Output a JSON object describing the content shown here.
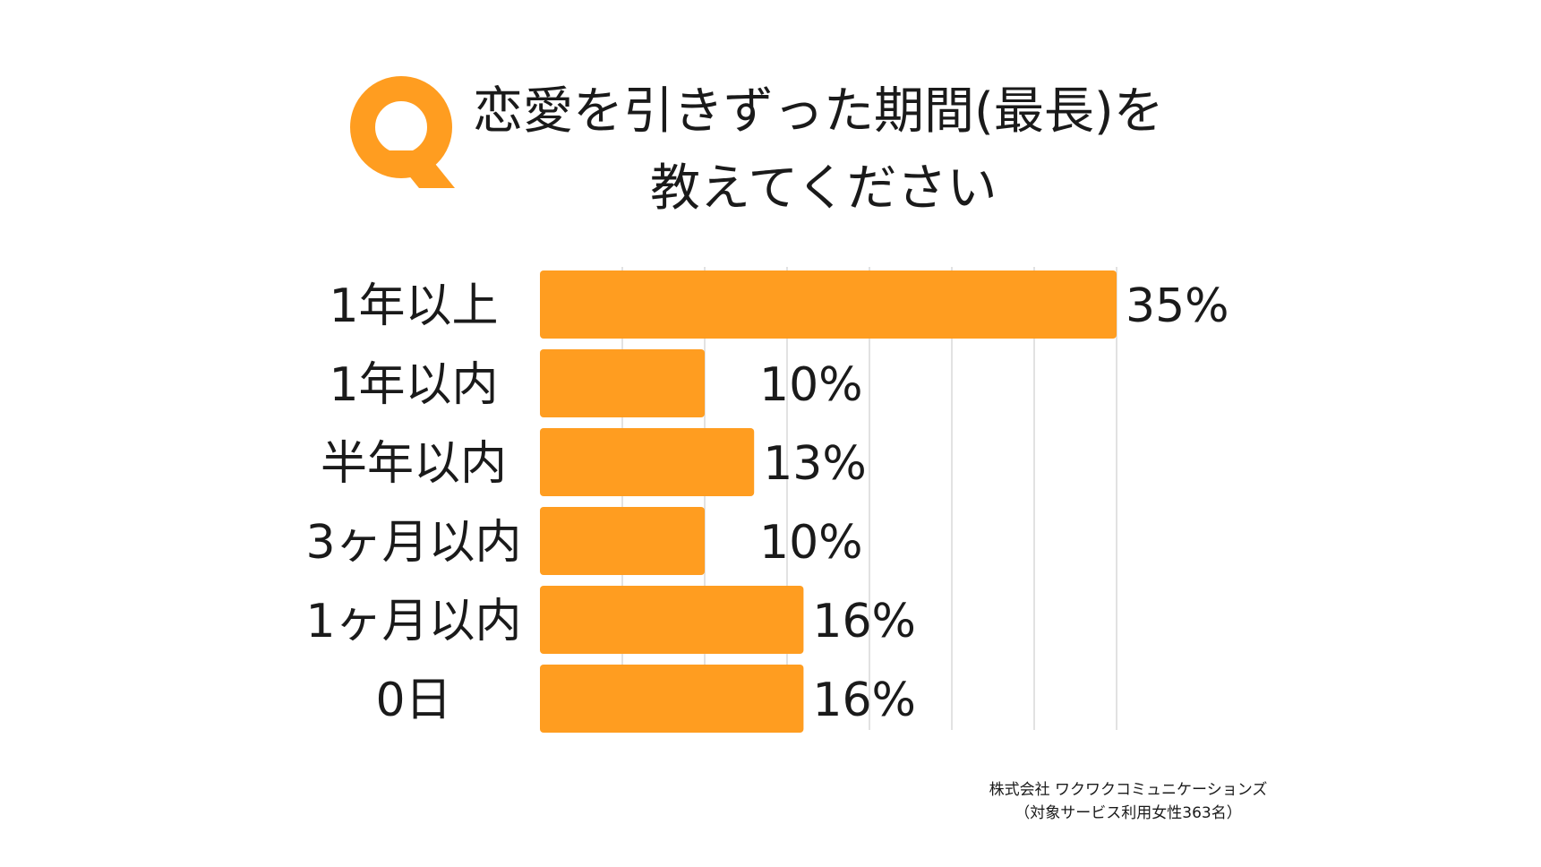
{
  "header": {
    "badge_letter": "Q",
    "title_line_1": "恋愛を引きずった期間(最長)を",
    "title_line_2": "教えてください"
  },
  "chart_data": {
    "type": "bar",
    "orientation": "horizontal",
    "categories": [
      "1年以上",
      "1年以内",
      "半年以内",
      "3ヶ月以内",
      "1ヶ月以内",
      "0日"
    ],
    "values": [
      35,
      10,
      13,
      10,
      16,
      16
    ],
    "value_labels": [
      "35%",
      "10%",
      "13%",
      "10%",
      "16%",
      "16%"
    ],
    "unit": "%",
    "xlim": [
      0,
      35
    ],
    "grid": true,
    "legend": "none",
    "bar_color": "#FF9D20",
    "grid_color": "#D9D9D9"
  },
  "colors": {
    "accent": "#FF9D20",
    "text": "#1A1A1A"
  },
  "credit": {
    "line_1": "株式会社 ワクワクコミュニケーションズ",
    "line_2": "（対象サービス利用女性363名）"
  }
}
